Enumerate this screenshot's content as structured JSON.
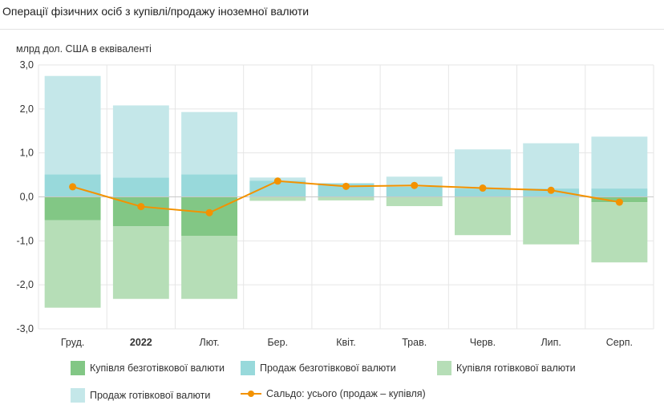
{
  "title": "Операції фізичних осіб з купівлі/продажу іноземної валюти",
  "chart_data": {
    "type": "bar",
    "stacked": true,
    "ylabel": "млрд дол. США в еквіваленті",
    "ylim": [
      -3,
      3
    ],
    "yticks": [
      "3,0",
      "2,0",
      "1,0",
      "0,0",
      "-1,0",
      "-2,0",
      "-3,0"
    ],
    "grid": true,
    "legend_position": "bottom",
    "categories": [
      "Груд.",
      "2022",
      "Лют.",
      "Бер.",
      "Квіт.",
      "Трав.",
      "Черв.",
      "Лип.",
      "Серп."
    ],
    "bold_categories": [
      "2022"
    ],
    "series": [
      {
        "name": "Купівля безготівкової валюти",
        "type": "bar",
        "color": "#82c785",
        "values": [
          -0.53,
          -0.67,
          -0.89,
          0,
          0,
          0,
          0,
          0,
          -0.12
        ]
      },
      {
        "name": "Продаж безготівкової валюти",
        "type": "bar",
        "color": "#98d9db",
        "values": [
          0.51,
          0.44,
          0.51,
          0.37,
          0.31,
          0.23,
          0.19,
          0.19,
          0.19
        ]
      },
      {
        "name": "Купівля готівкової валюти",
        "type": "bar",
        "color": "#b6deb7",
        "values": [
          -1.99,
          -1.65,
          -1.43,
          -0.09,
          -0.08,
          -0.21,
          -0.87,
          -1.08,
          -1.37
        ]
      },
      {
        "name": "Продаж готівкової валюти",
        "type": "bar",
        "color": "#c4e7e9",
        "values": [
          2.24,
          1.64,
          1.42,
          0.07,
          0,
          0.23,
          0.89,
          1.03,
          1.18
        ]
      },
      {
        "name": "Сальдо: усього (продаж – купівля)",
        "type": "line",
        "color": "#f39200",
        "values": [
          0.23,
          -0.22,
          -0.36,
          0.36,
          0.24,
          0.26,
          0.2,
          0.15,
          -0.12
        ]
      }
    ]
  }
}
